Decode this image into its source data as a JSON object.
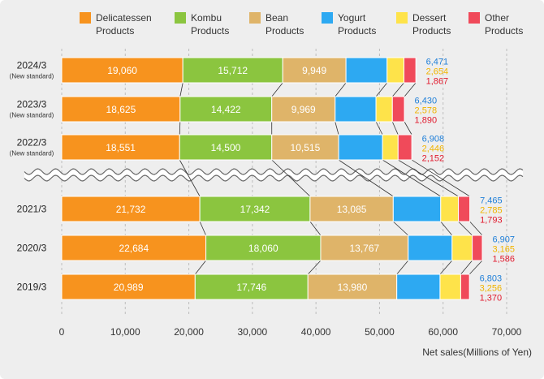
{
  "chart_data": {
    "type": "bar",
    "orientation": "horizontal",
    "stacked": true,
    "categories": [
      "2024/3",
      "2023/3",
      "2022/3",
      "2021/3",
      "2020/3",
      "2019/3"
    ],
    "category_notes": [
      "(New standard)",
      "(New standard)",
      "(New standard)",
      "",
      "",
      ""
    ],
    "series": [
      {
        "name": "Delicatessen Products",
        "color": "#F7931E",
        "data_labels": "inside",
        "values": [
          19060,
          18625,
          18551,
          21732,
          22684,
          20989
        ]
      },
      {
        "name": "Kombu Products",
        "color": "#8BC53F",
        "data_labels": "inside",
        "values": [
          15712,
          14422,
          14500,
          17342,
          18060,
          17746
        ]
      },
      {
        "name": "Bean Products",
        "color": "#DFB469",
        "data_labels": "inside",
        "values": [
          9949,
          9969,
          10515,
          13085,
          13767,
          13980
        ]
      },
      {
        "name": "Yogurt Products",
        "color": "#2DA9F2",
        "label_color": "#1F7FD8",
        "data_labels": "right",
        "values": [
          6471,
          6430,
          6908,
          7465,
          6907,
          6803
        ]
      },
      {
        "name": "Dessert Products",
        "color": "#FEE34A",
        "label_color": "#F0B400",
        "data_labels": "right",
        "values": [
          2654,
          2578,
          2446,
          2785,
          3165,
          3256
        ]
      },
      {
        "name": "Other Products",
        "color": "#F04A5A",
        "label_color": "#E11B2E",
        "data_labels": "right",
        "values": [
          1867,
          1890,
          2152,
          1793,
          1586,
          1370
        ]
      }
    ],
    "xlabel": "Net sales(Millions of Yen)",
    "ylabel": "",
    "xlim": [
      0,
      70000
    ],
    "xticks": [
      "0",
      "10,000",
      "20,000",
      "30,000",
      "40,000",
      "50,000",
      "60,000",
      "70,000"
    ],
    "axis_break_after_index": 2,
    "connector_lines": true,
    "grid": true,
    "legend_position": "top"
  },
  "colors": {
    "background": "#EEEEEE",
    "grid": "#BDBDBD",
    "connector": "#333333",
    "break_outline": "#666666"
  }
}
